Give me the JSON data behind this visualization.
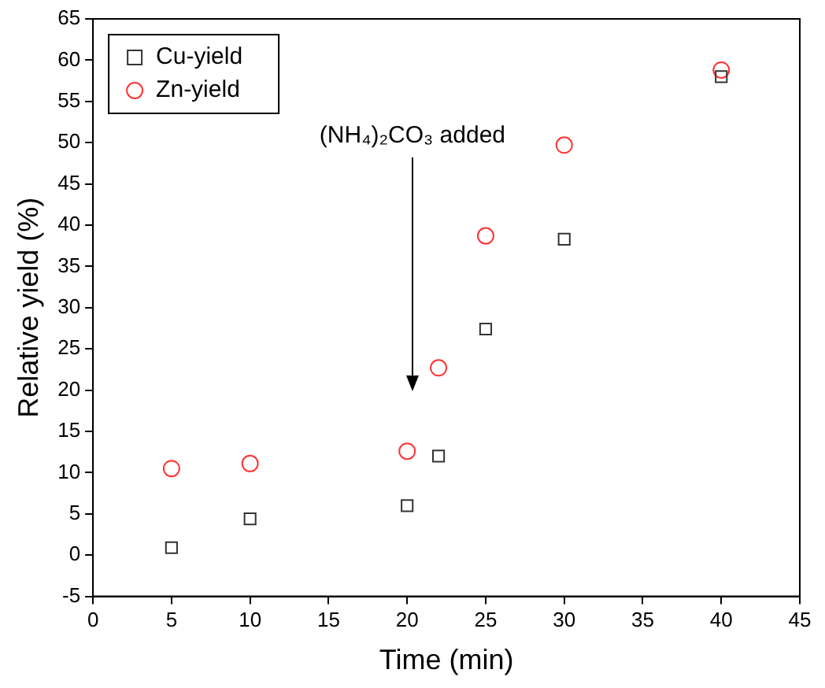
{
  "chart_data": {
    "type": "scatter",
    "xlabel": "Time (min)",
    "ylabel": "Relative yield (%)",
    "xlim": [
      0,
      45
    ],
    "xticks": [
      0,
      5,
      10,
      15,
      20,
      25,
      30,
      35,
      40,
      45
    ],
    "ylim": [
      -5,
      65
    ],
    "yticks": [
      -5,
      0,
      5,
      10,
      15,
      20,
      25,
      30,
      35,
      40,
      45,
      50,
      55,
      60,
      65
    ],
    "x": [
      5,
      10,
      20,
      22,
      25,
      30,
      40
    ],
    "series": [
      {
        "name": "Cu-yield",
        "color": "#333333",
        "marker": "square",
        "values": [
          0.9,
          4.4,
          6.0,
          12.0,
          27.4,
          38.3,
          58.0
        ]
      },
      {
        "name": "Zn-yield",
        "color": "#ff3333",
        "marker": "circle",
        "values": [
          10.5,
          11.1,
          12.6,
          22.7,
          38.7,
          49.7,
          58.8
        ]
      }
    ],
    "legend": "top left",
    "grid": false,
    "annotations": [
      "(NH₄)₂CO₃ added"
    ]
  }
}
